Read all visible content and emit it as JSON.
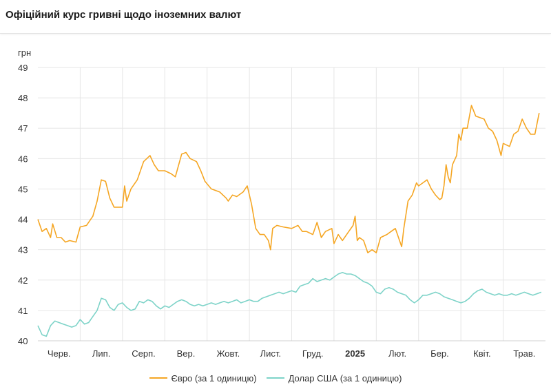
{
  "title": "Офіційний курс гривні щодо іноземних валют",
  "colors": {
    "euro": "#f5a623",
    "usd": "#7dd3c8",
    "grid": "#e6e6e6"
  },
  "chart_data": {
    "type": "line",
    "ylabel": "грн",
    "ylim": [
      40,
      49
    ],
    "yticks": [
      40,
      41,
      42,
      43,
      44,
      45,
      46,
      47,
      48,
      49
    ],
    "x_ticks": [
      {
        "label": "Черв.",
        "month": 0.5,
        "bold": false
      },
      {
        "label": "Лип.",
        "month": 1.5,
        "bold": false
      },
      {
        "label": "Серп.",
        "month": 2.5,
        "bold": false
      },
      {
        "label": "Вер.",
        "month": 3.5,
        "bold": false
      },
      {
        "label": "Жовт.",
        "month": 4.5,
        "bold": false
      },
      {
        "label": "Лист.",
        "month": 5.5,
        "bold": false
      },
      {
        "label": "Груд.",
        "month": 6.5,
        "bold": false
      },
      {
        "label": "2025",
        "month": 7.5,
        "bold": true
      },
      {
        "label": "Лют.",
        "month": 8.5,
        "bold": false
      },
      {
        "label": "Бер.",
        "month": 9.5,
        "bold": false
      },
      {
        "label": "Квіт.",
        "month": 10.5,
        "bold": false
      },
      {
        "label": "Трав.",
        "month": 11.5,
        "bold": false
      }
    ],
    "xrange": [
      0,
      12
    ],
    "series": [
      {
        "name": "Євро (за 1 одиницю)",
        "color": "#f5a623",
        "points": [
          [
            0,
            44.0
          ],
          [
            0.1,
            43.6
          ],
          [
            0.2,
            43.7
          ],
          [
            0.3,
            43.4
          ],
          [
            0.35,
            43.85
          ],
          [
            0.45,
            43.4
          ],
          [
            0.55,
            43.4
          ],
          [
            0.65,
            43.25
          ],
          [
            0.75,
            43.3
          ],
          [
            0.9,
            43.25
          ],
          [
            1.0,
            43.75
          ],
          [
            1.15,
            43.8
          ],
          [
            1.3,
            44.1
          ],
          [
            1.4,
            44.6
          ],
          [
            1.5,
            45.3
          ],
          [
            1.6,
            45.25
          ],
          [
            1.7,
            44.7
          ],
          [
            1.8,
            44.4
          ],
          [
            2.0,
            44.4
          ],
          [
            2.05,
            45.1
          ],
          [
            2.1,
            44.6
          ],
          [
            2.2,
            45.0
          ],
          [
            2.35,
            45.3
          ],
          [
            2.5,
            45.9
          ],
          [
            2.65,
            46.1
          ],
          [
            2.75,
            45.8
          ],
          [
            2.85,
            45.6
          ],
          [
            3.0,
            45.6
          ],
          [
            3.15,
            45.5
          ],
          [
            3.25,
            45.4
          ],
          [
            3.4,
            46.15
          ],
          [
            3.5,
            46.2
          ],
          [
            3.6,
            46.0
          ],
          [
            3.75,
            45.9
          ],
          [
            3.85,
            45.6
          ],
          [
            3.95,
            45.25
          ],
          [
            4.1,
            45.0
          ],
          [
            4.3,
            44.9
          ],
          [
            4.45,
            44.7
          ],
          [
            4.5,
            44.6
          ],
          [
            4.6,
            44.8
          ],
          [
            4.7,
            44.75
          ],
          [
            4.85,
            44.9
          ],
          [
            4.95,
            45.1
          ],
          [
            5.05,
            44.5
          ],
          [
            5.15,
            43.7
          ],
          [
            5.25,
            43.5
          ],
          [
            5.35,
            43.5
          ],
          [
            5.45,
            43.3
          ],
          [
            5.5,
            43.0
          ],
          [
            5.55,
            43.7
          ],
          [
            5.65,
            43.8
          ],
          [
            5.8,
            43.75
          ],
          [
            6.0,
            43.7
          ],
          [
            6.15,
            43.8
          ],
          [
            6.25,
            43.6
          ],
          [
            6.35,
            43.6
          ],
          [
            6.5,
            43.5
          ],
          [
            6.6,
            43.9
          ],
          [
            6.7,
            43.4
          ],
          [
            6.8,
            43.6
          ],
          [
            6.95,
            43.7
          ],
          [
            7.0,
            43.2
          ],
          [
            7.1,
            43.5
          ],
          [
            7.2,
            43.3
          ],
          [
            7.35,
            43.6
          ],
          [
            7.45,
            43.8
          ],
          [
            7.5,
            44.1
          ],
          [
            7.55,
            43.3
          ],
          [
            7.6,
            43.4
          ],
          [
            7.7,
            43.3
          ],
          [
            7.8,
            42.9
          ],
          [
            7.9,
            43.0
          ],
          [
            8.0,
            42.9
          ],
          [
            8.1,
            43.4
          ],
          [
            8.25,
            43.5
          ],
          [
            8.35,
            43.6
          ],
          [
            8.45,
            43.7
          ],
          [
            8.55,
            43.3
          ],
          [
            8.6,
            43.1
          ],
          [
            8.65,
            43.7
          ],
          [
            8.75,
            44.6
          ],
          [
            8.85,
            44.8
          ],
          [
            8.95,
            45.2
          ],
          [
            9.0,
            45.1
          ],
          [
            9.1,
            45.2
          ],
          [
            9.2,
            45.3
          ],
          [
            9.3,
            45.0
          ],
          [
            9.4,
            44.8
          ],
          [
            9.5,
            44.65
          ],
          [
            9.55,
            44.7
          ],
          [
            9.6,
            45.1
          ],
          [
            9.65,
            45.8
          ],
          [
            9.7,
            45.4
          ],
          [
            9.75,
            45.2
          ],
          [
            9.8,
            45.8
          ],
          [
            9.9,
            46.1
          ],
          [
            9.95,
            46.8
          ],
          [
            10.0,
            46.6
          ],
          [
            10.05,
            47.0
          ],
          [
            10.15,
            47.0
          ],
          [
            10.25,
            47.75
          ],
          [
            10.35,
            47.4
          ],
          [
            10.55,
            47.3
          ],
          [
            10.65,
            47.0
          ],
          [
            10.75,
            46.9
          ],
          [
            10.85,
            46.6
          ],
          [
            10.95,
            46.1
          ],
          [
            11.0,
            46.5
          ],
          [
            11.15,
            46.4
          ],
          [
            11.25,
            46.8
          ],
          [
            11.35,
            46.9
          ],
          [
            11.45,
            47.3
          ],
          [
            11.55,
            47.0
          ],
          [
            11.65,
            46.8
          ],
          [
            11.75,
            46.8
          ],
          [
            11.85,
            47.5
          ]
        ]
      },
      {
        "name": "Долар США (за 1 одиницю)",
        "color": "#7dd3c8",
        "points": [
          [
            0,
            40.5
          ],
          [
            0.1,
            40.2
          ],
          [
            0.2,
            40.15
          ],
          [
            0.3,
            40.5
          ],
          [
            0.4,
            40.65
          ],
          [
            0.5,
            40.6
          ],
          [
            0.6,
            40.55
          ],
          [
            0.7,
            40.5
          ],
          [
            0.8,
            40.45
          ],
          [
            0.9,
            40.5
          ],
          [
            1.0,
            40.7
          ],
          [
            1.1,
            40.55
          ],
          [
            1.2,
            40.6
          ],
          [
            1.3,
            40.8
          ],
          [
            1.4,
            41.0
          ],
          [
            1.5,
            41.4
          ],
          [
            1.6,
            41.35
          ],
          [
            1.7,
            41.1
          ],
          [
            1.8,
            41.0
          ],
          [
            1.9,
            41.2
          ],
          [
            2.0,
            41.25
          ],
          [
            2.1,
            41.1
          ],
          [
            2.2,
            41.0
          ],
          [
            2.3,
            41.05
          ],
          [
            2.4,
            41.3
          ],
          [
            2.5,
            41.25
          ],
          [
            2.6,
            41.35
          ],
          [
            2.7,
            41.3
          ],
          [
            2.8,
            41.15
          ],
          [
            2.9,
            41.05
          ],
          [
            3.0,
            41.15
          ],
          [
            3.1,
            41.1
          ],
          [
            3.2,
            41.2
          ],
          [
            3.3,
            41.3
          ],
          [
            3.4,
            41.35
          ],
          [
            3.5,
            41.3
          ],
          [
            3.6,
            41.2
          ],
          [
            3.7,
            41.15
          ],
          [
            3.8,
            41.2
          ],
          [
            3.9,
            41.15
          ],
          [
            4.0,
            41.2
          ],
          [
            4.1,
            41.25
          ],
          [
            4.2,
            41.2
          ],
          [
            4.3,
            41.25
          ],
          [
            4.4,
            41.3
          ],
          [
            4.5,
            41.25
          ],
          [
            4.6,
            41.3
          ],
          [
            4.7,
            41.35
          ],
          [
            4.8,
            41.25
          ],
          [
            4.9,
            41.3
          ],
          [
            5.0,
            41.35
          ],
          [
            5.1,
            41.3
          ],
          [
            5.2,
            41.3
          ],
          [
            5.3,
            41.4
          ],
          [
            5.4,
            41.45
          ],
          [
            5.5,
            41.5
          ],
          [
            5.6,
            41.55
          ],
          [
            5.7,
            41.6
          ],
          [
            5.8,
            41.55
          ],
          [
            5.9,
            41.6
          ],
          [
            6.0,
            41.65
          ],
          [
            6.1,
            41.6
          ],
          [
            6.2,
            41.8
          ],
          [
            6.3,
            41.85
          ],
          [
            6.4,
            41.9
          ],
          [
            6.5,
            42.05
          ],
          [
            6.6,
            41.95
          ],
          [
            6.7,
            42.0
          ],
          [
            6.8,
            42.05
          ],
          [
            6.9,
            42.0
          ],
          [
            7.0,
            42.1
          ],
          [
            7.1,
            42.2
          ],
          [
            7.2,
            42.25
          ],
          [
            7.3,
            42.2
          ],
          [
            7.4,
            42.2
          ],
          [
            7.5,
            42.15
          ],
          [
            7.6,
            42.05
          ],
          [
            7.7,
            41.95
          ],
          [
            7.8,
            41.9
          ],
          [
            7.9,
            41.8
          ],
          [
            8.0,
            41.6
          ],
          [
            8.1,
            41.55
          ],
          [
            8.2,
            41.7
          ],
          [
            8.3,
            41.75
          ],
          [
            8.4,
            41.7
          ],
          [
            8.5,
            41.6
          ],
          [
            8.6,
            41.55
          ],
          [
            8.7,
            41.5
          ],
          [
            8.8,
            41.35
          ],
          [
            8.9,
            41.25
          ],
          [
            9.0,
            41.35
          ],
          [
            9.1,
            41.5
          ],
          [
            9.2,
            41.5
          ],
          [
            9.3,
            41.55
          ],
          [
            9.4,
            41.6
          ],
          [
            9.5,
            41.55
          ],
          [
            9.6,
            41.45
          ],
          [
            9.7,
            41.4
          ],
          [
            9.8,
            41.35
          ],
          [
            9.9,
            41.3
          ],
          [
            10.0,
            41.25
          ],
          [
            10.1,
            41.3
          ],
          [
            10.2,
            41.4
          ],
          [
            10.3,
            41.55
          ],
          [
            10.4,
            41.65
          ],
          [
            10.5,
            41.7
          ],
          [
            10.6,
            41.6
          ],
          [
            10.7,
            41.55
          ],
          [
            10.8,
            41.5
          ],
          [
            10.9,
            41.55
          ],
          [
            11.0,
            41.5
          ],
          [
            11.1,
            41.5
          ],
          [
            11.2,
            41.55
          ],
          [
            11.3,
            41.5
          ],
          [
            11.4,
            41.55
          ],
          [
            11.5,
            41.6
          ],
          [
            11.6,
            41.55
          ],
          [
            11.7,
            41.5
          ],
          [
            11.8,
            41.55
          ],
          [
            11.9,
            41.6
          ]
        ]
      }
    ]
  }
}
